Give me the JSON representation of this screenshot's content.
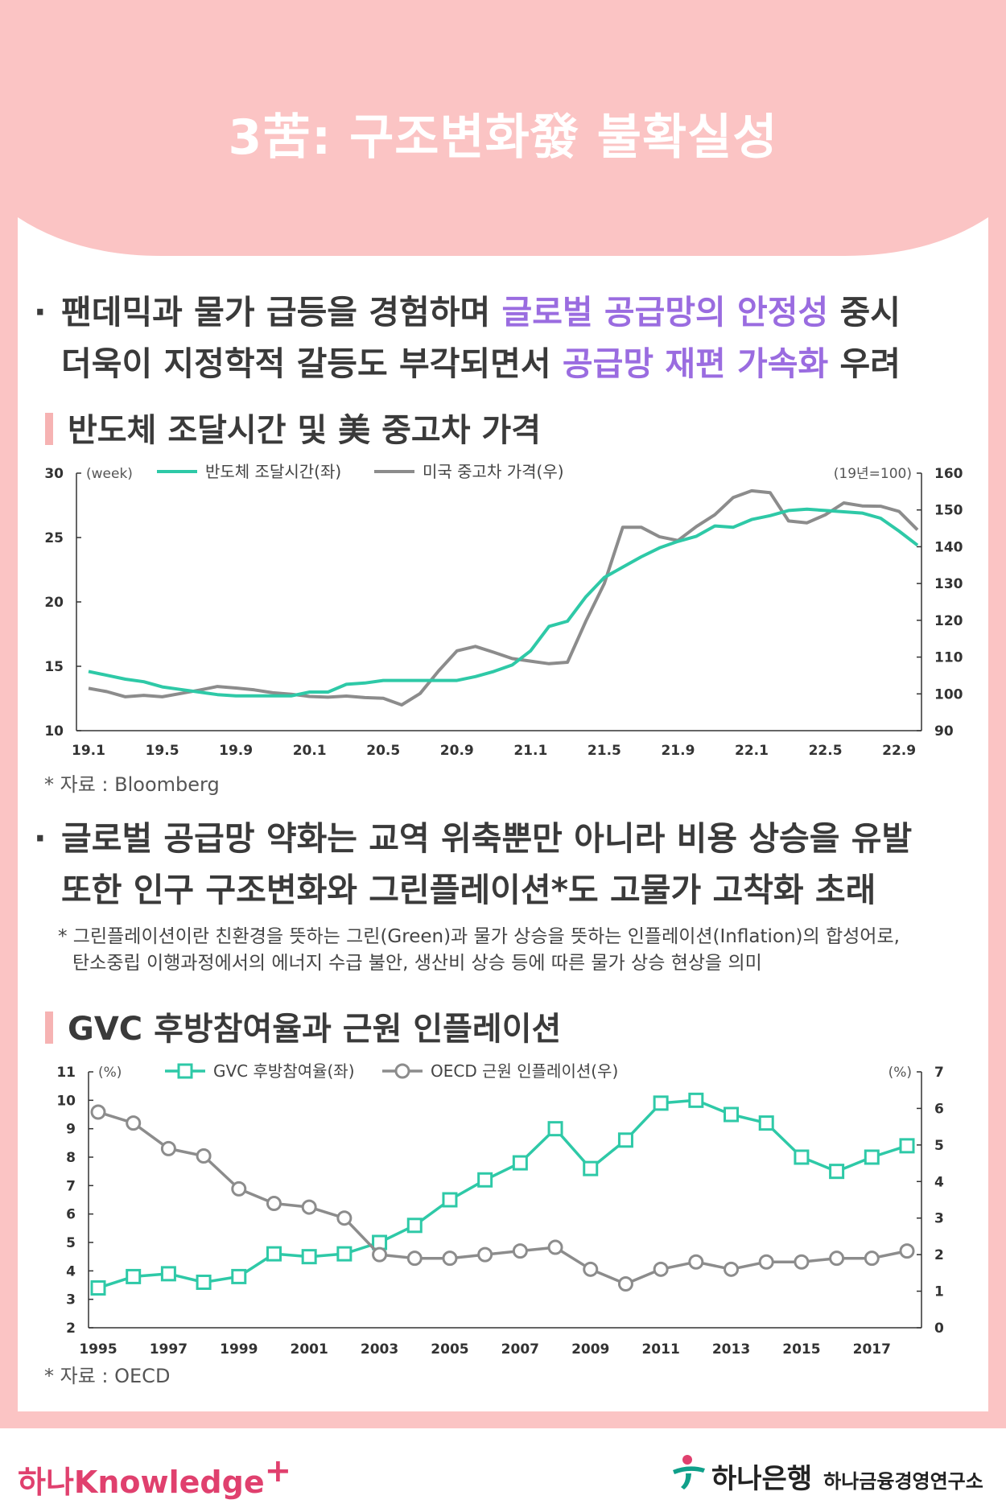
{
  "header": {
    "title": "3苦: 구조변화發 불확실성"
  },
  "bullet1": {
    "line1_pre": "팬데믹과 물가 급등을 경험하며 ",
    "line1_hl": "글로벌 공급망의 안정성",
    "line1_post": " 중시",
    "line2_pre": "더욱이 지정학적 갈등도 부각되면서 ",
    "line2_hl": "공급망 재편 가속화",
    "line2_post": " 우려"
  },
  "section1": {
    "title": "반도체 조달시간 및 美 중고차 가격",
    "source": "* 자료 : Bloomberg"
  },
  "bullet2": {
    "line1": "글로벌 공급망 약화는 교역 위축뿐만 아니라 비용 상승을 유발",
    "line2": "또한 인구 구조변화와 그린플레이션*도 고물가 고착화 초래",
    "note1": "* 그린플레이션이란 친환경을 뜻하는 그린(Green)과 물가 상승을 뜻하는 인플레이션(Inflation)의 합성어로,",
    "note2": "탄소중립 이행과정에서의 에너지 수급 불안, 생산비 상승 등에 따른 물가 상승 현상을 의미"
  },
  "section2": {
    "title": "GVC 후방참여율과 근원 인플레이션",
    "source": "* 자료 : OECD"
  },
  "colors": {
    "teal": "#2ec9a7",
    "gray": "#8c8c8c",
    "pink": "#fbc4c4",
    "purple": "#9a6ce0"
  },
  "chart_data": [
    {
      "type": "line",
      "left_unit": "(week)",
      "right_unit": "(19년=100)",
      "x_ticks": [
        "19.1",
        "19.5",
        "19.9",
        "20.1",
        "20.5",
        "20.9",
        "21.1",
        "21.5",
        "21.9",
        "22.1",
        "22.5",
        "22.9"
      ],
      "y_left_ticks": [
        "30",
        "25",
        "20",
        "15",
        "10"
      ],
      "y_right_ticks": [
        "160",
        "150",
        "140",
        "130",
        "120",
        "110",
        "100",
        "90"
      ],
      "ylim_left": [
        10,
        30
      ],
      "ylim_right": [
        90,
        160
      ],
      "series": [
        {
          "name": "반도체 조달시간(좌)",
          "axis": "left",
          "color": "#2ec9a7",
          "values": [
            14.6,
            14.3,
            14.0,
            13.8,
            13.4,
            13.2,
            13.0,
            12.8,
            12.7,
            12.7,
            12.7,
            12.7,
            13.0,
            13.0,
            13.6,
            13.7,
            13.9,
            13.9,
            13.9,
            13.9,
            13.9,
            14.2,
            14.6,
            15.1,
            16.2,
            18.1,
            18.5,
            20.4,
            21.9,
            22.7,
            23.5,
            24.2,
            24.7,
            25.1,
            25.9,
            25.8,
            26.4,
            26.7,
            27.1,
            27.2,
            27.1,
            27.0,
            26.9,
            26.5,
            25.5,
            24.4
          ]
        },
        {
          "name": "미국 중고차 가격(우)",
          "axis": "right",
          "color": "#8c8c8c",
          "values": [
            101.5,
            100.6,
            99.2,
            99.6,
            99.2,
            100.1,
            101.0,
            102.0,
            101.6,
            101.1,
            100.3,
            99.9,
            99.3,
            99.1,
            99.4,
            99.0,
            98.8,
            97.0,
            100.1,
            106.2,
            111.7,
            112.9,
            111.3,
            109.6,
            108.9,
            108.2,
            108.6,
            119.8,
            130.0,
            145.3,
            145.3,
            142.7,
            141.7,
            145.5,
            148.7,
            153.4,
            155.2,
            154.7,
            147.0,
            146.5,
            148.7,
            151.9,
            151.1,
            151.0,
            149.6,
            144.6
          ]
        }
      ]
    },
    {
      "type": "line",
      "left_unit": "(%)",
      "right_unit": "(%)",
      "x_ticks": [
        "1995",
        "1997",
        "1999",
        "2001",
        "2003",
        "2005",
        "2007",
        "2009",
        "2011",
        "2013",
        "2015",
        "2017"
      ],
      "y_left_ticks": [
        "11",
        "10",
        "9",
        "8",
        "7",
        "6",
        "5",
        "4",
        "3",
        "2"
      ],
      "y_right_ticks": [
        "7",
        "6",
        "5",
        "4",
        "3",
        "2",
        "1",
        "0"
      ],
      "ylim_left": [
        2,
        11
      ],
      "ylim_right": [
        0,
        7
      ],
      "x": [
        1995,
        1996,
        1997,
        1998,
        1999,
        2000,
        2001,
        2002,
        2003,
        2004,
        2005,
        2006,
        2007,
        2008,
        2009,
        2010,
        2011,
        2012,
        2013,
        2014,
        2015,
        2016,
        2017,
        2018
      ],
      "series": [
        {
          "name": "GVC 후방참여율(좌)",
          "axis": "left",
          "color": "#2ec9a7",
          "marker": "square",
          "values": [
            3.4,
            3.8,
            3.9,
            3.6,
            3.8,
            4.6,
            4.5,
            4.6,
            5.0,
            5.6,
            6.5,
            7.2,
            7.8,
            9.0,
            7.6,
            8.6,
            9.9,
            10.0,
            9.5,
            9.2,
            8.0,
            7.5,
            8.0,
            8.4
          ]
        },
        {
          "name": "OECD 근원 인플레이션(우)",
          "axis": "right",
          "color": "#8c8c8c",
          "marker": "circle",
          "values": [
            5.9,
            5.6,
            4.9,
            4.7,
            3.8,
            3.4,
            3.3,
            3.0,
            2.0,
            1.9,
            1.9,
            2.0,
            2.1,
            2.2,
            1.6,
            1.2,
            1.6,
            1.8,
            1.6,
            1.8,
            1.8,
            1.9,
            1.9,
            2.1
          ]
        }
      ]
    }
  ],
  "footer": {
    "left_logo": "하나Knowledge",
    "left_plus": "+",
    "bank": "하나은행",
    "institute": "하나금융경영연구소"
  }
}
